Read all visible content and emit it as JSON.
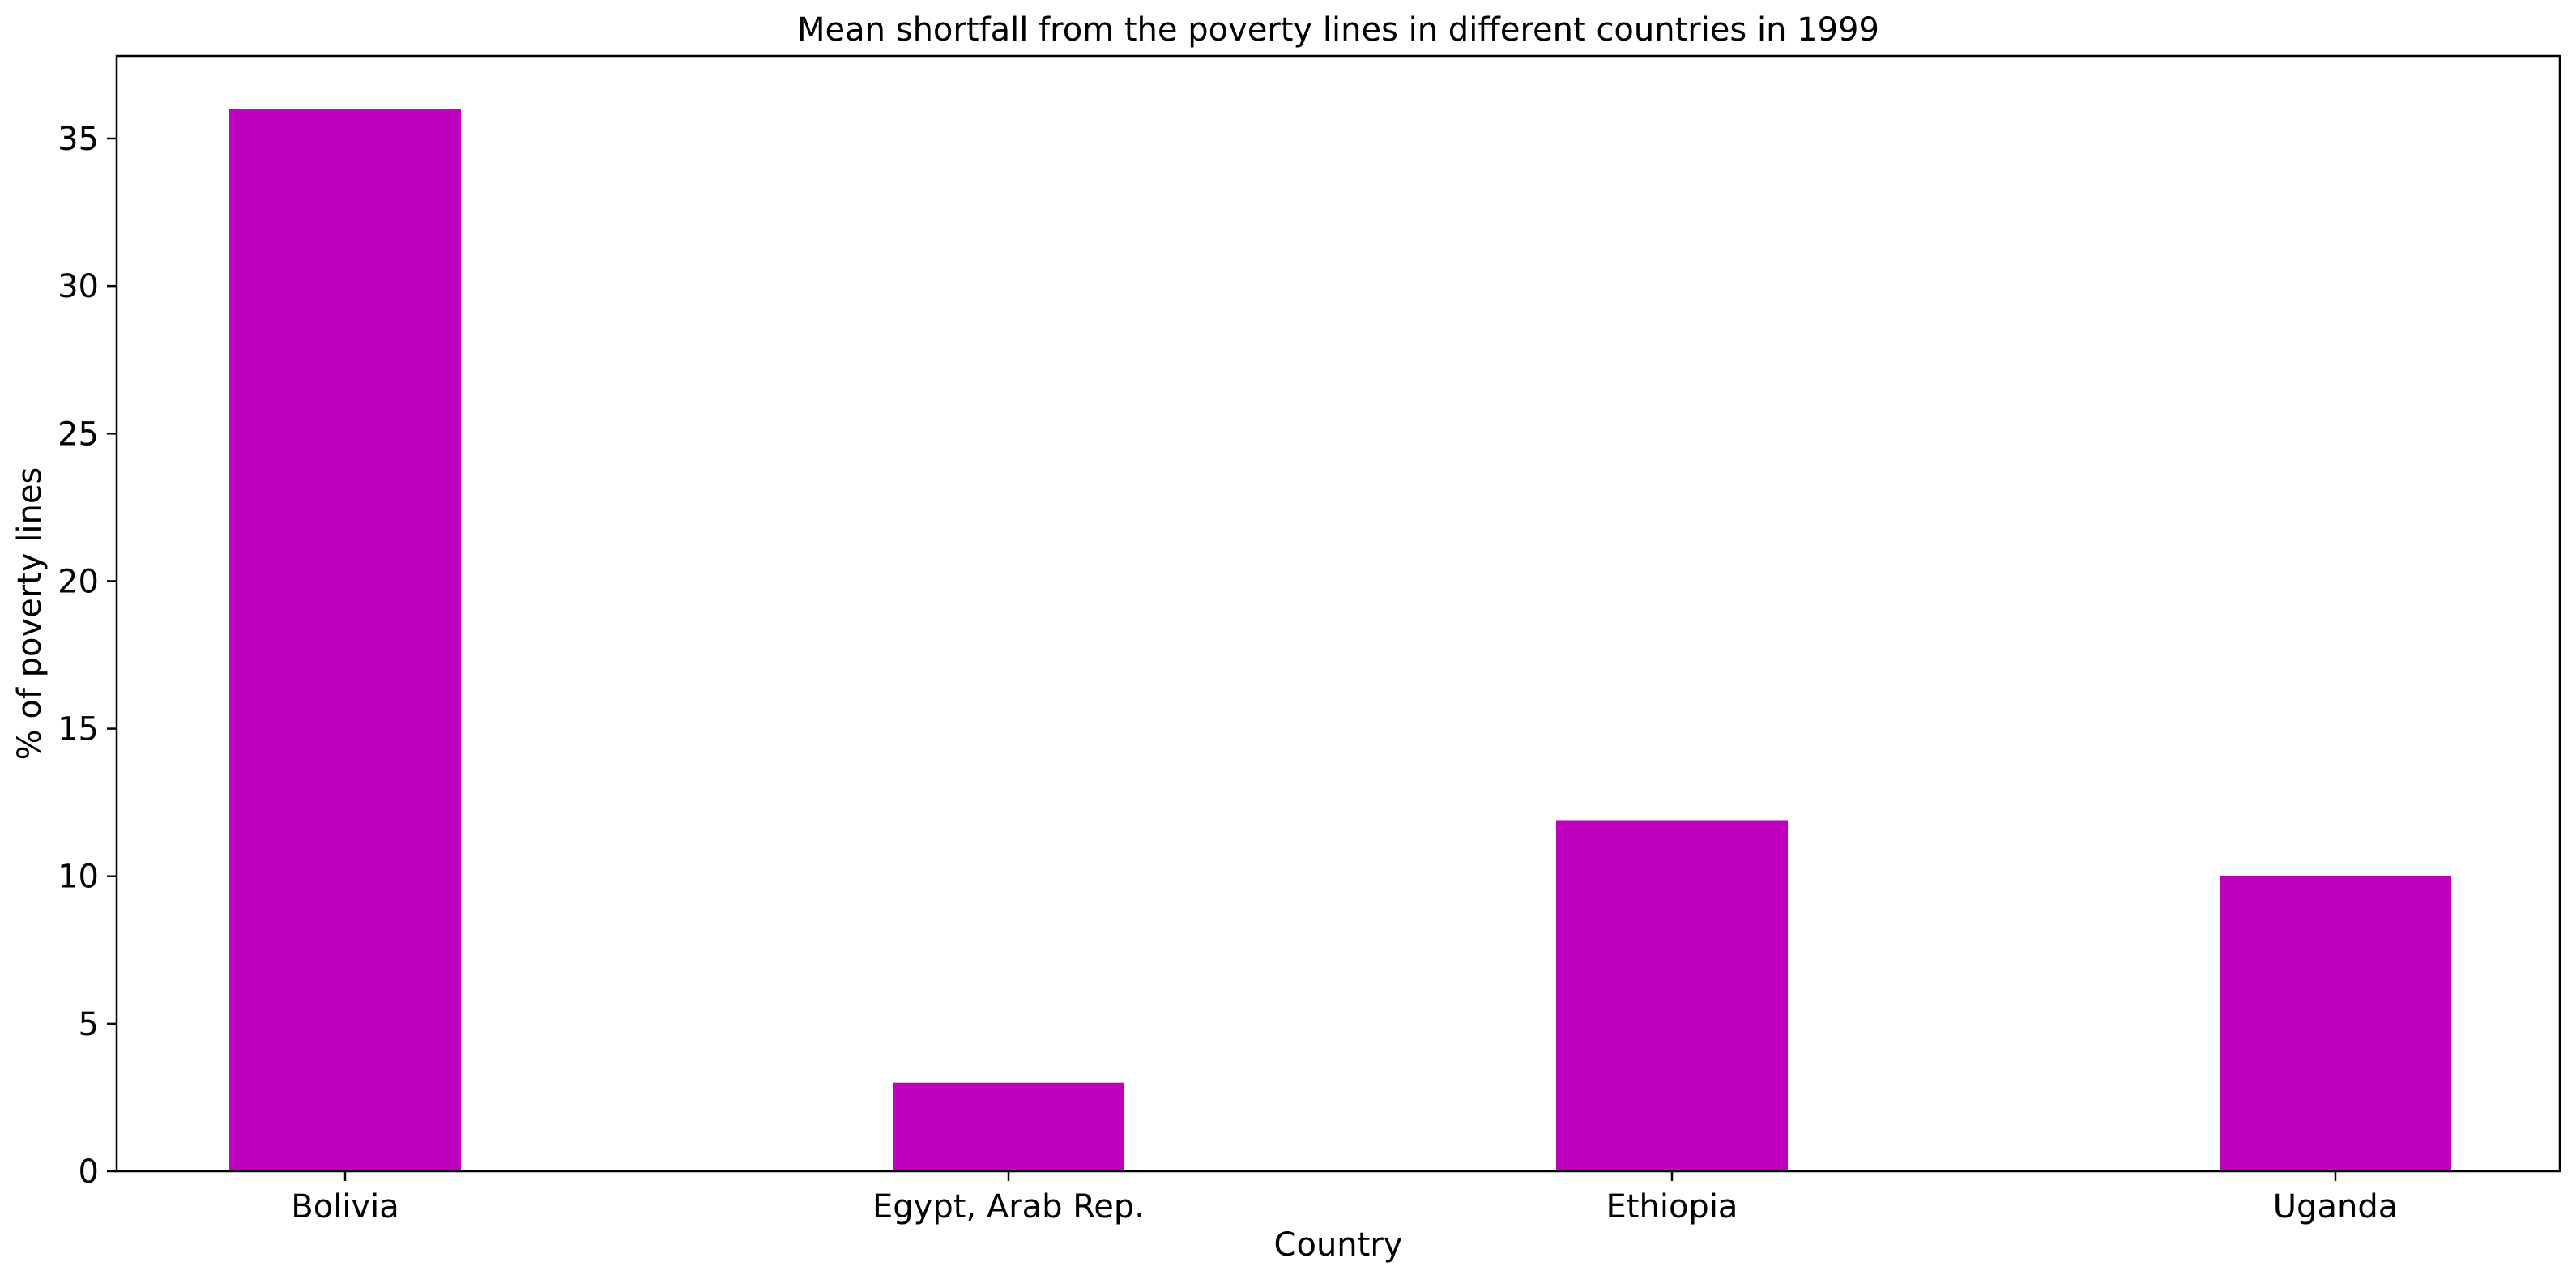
{
  "chart_data": {
    "type": "bar",
    "title": "Mean shortfall from the poverty lines in different countries in 1999",
    "xlabel": "Country",
    "ylabel": "% of poverty lines",
    "categories": [
      "Bolivia",
      "Egypt, Arab Rep.",
      "Ethiopia",
      "Uganda"
    ],
    "values": [
      36.0,
      3.0,
      11.9,
      10.0
    ],
    "ylim": [
      0,
      37.8
    ],
    "yticks": [
      0,
      5,
      10,
      15,
      20,
      25,
      30,
      35
    ],
    "bar_color": "#bf00bf",
    "grid": false,
    "legend": "none"
  }
}
